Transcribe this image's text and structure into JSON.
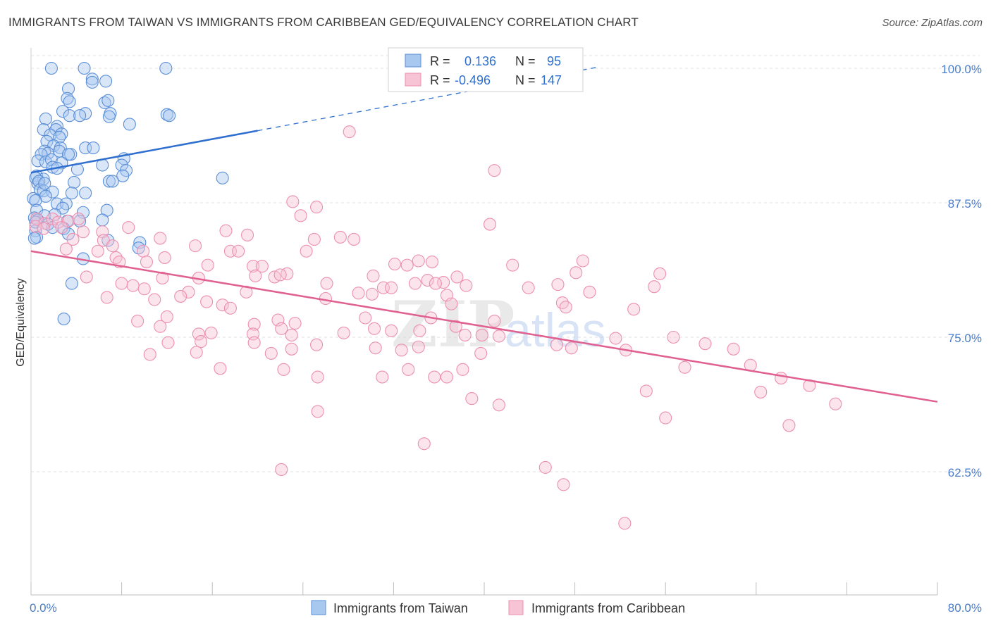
{
  "title": "IMMIGRANTS FROM TAIWAN VS IMMIGRANTS FROM CARIBBEAN GED/EQUIVALENCY CORRELATION CHART",
  "source": "Source: ZipAtlas.com",
  "watermark": "ZIPatlas",
  "colors": {
    "taiwan": "#5b8fd8",
    "taiwan_fill": "#a9c8ef",
    "taiwan_line": "#2f6fcf",
    "caribbean": "#ec8fb0",
    "caribbean_fill": "#f6c4d5",
    "caribbean_line": "#e0608f",
    "tick_text": "#4a7cc9",
    "grid": "#e2e2e2"
  },
  "legend": {
    "r_label": "R =",
    "n_label": "N =",
    "rows": [
      {
        "r": "0.136",
        "n": "95"
      },
      {
        "r": "-0.496",
        "n": "147"
      }
    ]
  },
  "chart_data": {
    "type": "scatter",
    "title": "IMMIGRANTS FROM TAIWAN VS IMMIGRANTS FROM CARIBBEAN GED/EQUIVALENCY CORRELATION CHART",
    "xlabel": "",
    "ylabel": "GED/Equivalency",
    "xlim": [
      0,
      80
    ],
    "ylim": [
      52,
      101
    ],
    "x_tick_labels": [
      "0.0%",
      "80.0%"
    ],
    "y_ticks": [
      62.5,
      75.0,
      87.5,
      100.0
    ],
    "y_tick_labels": [
      "62.5%",
      "75.0%",
      "87.5%",
      "100.0%"
    ],
    "grid": true,
    "legend_position": "bottom",
    "series": [
      {
        "name": "Immigrants from Taiwan",
        "trend": {
          "x": [
            0,
            20
          ],
          "y": [
            90.3,
            94.2
          ],
          "dashed_to": [
            50,
            100.1
          ]
        },
        "points": [
          [
            4.7,
            100
          ],
          [
            11.9,
            100
          ],
          [
            5.4,
            99
          ],
          [
            1.8,
            100
          ],
          [
            3.3,
            98.1
          ],
          [
            6.6,
            98.8
          ],
          [
            3.2,
            97.2
          ],
          [
            6.5,
            96.8
          ],
          [
            5.4,
            98.7
          ],
          [
            3.4,
            96.9
          ],
          [
            6.8,
            97
          ],
          [
            2.8,
            96
          ],
          [
            4.8,
            95.8
          ],
          [
            7,
            95.8
          ],
          [
            3.4,
            95.6
          ],
          [
            1.3,
            95.3
          ],
          [
            4.3,
            95.6
          ],
          [
            6.9,
            95.5
          ],
          [
            12,
            95.7
          ],
          [
            12.2,
            95.6
          ],
          [
            8.7,
            94.8
          ],
          [
            1.1,
            94.3
          ],
          [
            2.3,
            94.6
          ],
          [
            2.2,
            94.3
          ],
          [
            1.7,
            93.8
          ],
          [
            2.7,
            93.9
          ],
          [
            2.5,
            93.6
          ],
          [
            1.4,
            93.2
          ],
          [
            2,
            92.8
          ],
          [
            4.8,
            92.6
          ],
          [
            5.5,
            92.6
          ],
          [
            1.2,
            92.3
          ],
          [
            2.6,
            92.6
          ],
          [
            1.5,
            92.1
          ],
          [
            2.5,
            92.3
          ],
          [
            3.5,
            92
          ],
          [
            0.9,
            92
          ],
          [
            3.3,
            92
          ],
          [
            0.6,
            91.4
          ],
          [
            1.3,
            91.3
          ],
          [
            1.8,
            91.5
          ],
          [
            2.7,
            91.2
          ],
          [
            8.2,
            91.6
          ],
          [
            4.1,
            90.6
          ],
          [
            6.3,
            91
          ],
          [
            8,
            91
          ],
          [
            1.9,
            90.8
          ],
          [
            2.3,
            90.7
          ],
          [
            8.4,
            90.5
          ],
          [
            8.1,
            90
          ],
          [
            0.5,
            90
          ],
          [
            1.1,
            89.7
          ],
          [
            0.4,
            89.8
          ],
          [
            6.9,
            89.5
          ],
          [
            7.2,
            89.5
          ],
          [
            0.6,
            89.3
          ],
          [
            0.7,
            89.5
          ],
          [
            3.8,
            89.4
          ],
          [
            16.9,
            89.8
          ],
          [
            0.8,
            88.7
          ],
          [
            1.1,
            88.6
          ],
          [
            1.9,
            88.5
          ],
          [
            3.6,
            88.4
          ],
          [
            4.8,
            88.4
          ],
          [
            1.3,
            88.1
          ],
          [
            0.2,
            87.9
          ],
          [
            0.4,
            87.7
          ],
          [
            2.3,
            87.4
          ],
          [
            3.1,
            87.4
          ],
          [
            2.8,
            87
          ],
          [
            0.5,
            86.8
          ],
          [
            4.6,
            86.6
          ],
          [
            6.7,
            86.8
          ],
          [
            1.2,
            86.3
          ],
          [
            2.1,
            86.4
          ],
          [
            0.3,
            86.1
          ],
          [
            0.6,
            85.9
          ],
          [
            3.2,
            85.8
          ],
          [
            4.3,
            85.8
          ],
          [
            6.3,
            85.9
          ],
          [
            1.5,
            85.5
          ],
          [
            1.9,
            85.2
          ],
          [
            2.9,
            85.1
          ],
          [
            0.4,
            84.9
          ],
          [
            3.3,
            84.6
          ],
          [
            0.5,
            84.3
          ],
          [
            0.3,
            84.2
          ],
          [
            6.8,
            84
          ],
          [
            9.6,
            83.8
          ],
          [
            9.5,
            83.3
          ],
          [
            4.6,
            82.3
          ],
          [
            3.6,
            80
          ],
          [
            2.9,
            76.7
          ],
          [
            0.4,
            85.7
          ],
          [
            1.2,
            89.3
          ]
        ]
      },
      {
        "name": "Immigrants from Caribbean",
        "trend": {
          "x": [
            0,
            80
          ],
          "y": [
            83,
            69
          ]
        },
        "points": [
          [
            0.5,
            86
          ],
          [
            1.2,
            85.6
          ],
          [
            1.9,
            86
          ],
          [
            2.4,
            85.7
          ],
          [
            3.3,
            85.8
          ],
          [
            4.2,
            86
          ],
          [
            0.4,
            85.3
          ],
          [
            1.1,
            85.1
          ],
          [
            2.7,
            85.2
          ],
          [
            4.6,
            84.8
          ],
          [
            6.3,
            84.8
          ],
          [
            8.6,
            85.2
          ],
          [
            11.4,
            84.2
          ],
          [
            17.2,
            84.9
          ],
          [
            19.1,
            84.5
          ],
          [
            25,
            84.1
          ],
          [
            27.3,
            84.3
          ],
          [
            28.5,
            84.1
          ],
          [
            28.1,
            94.1
          ],
          [
            40.9,
            90.5
          ],
          [
            23.1,
            87.6
          ],
          [
            25.2,
            87.1
          ],
          [
            23.8,
            86.3
          ],
          [
            40.5,
            85.5
          ],
          [
            3.7,
            84.1
          ],
          [
            6.4,
            84
          ],
          [
            7.2,
            83.5
          ],
          [
            3.1,
            83.2
          ],
          [
            5.9,
            83
          ],
          [
            9.9,
            83
          ],
          [
            14.5,
            83.5
          ],
          [
            17.6,
            83
          ],
          [
            18.3,
            83
          ],
          [
            24.3,
            83
          ],
          [
            7.5,
            82.4
          ],
          [
            11.8,
            82.4
          ],
          [
            7.8,
            82
          ],
          [
            10.2,
            82
          ],
          [
            15.6,
            81.7
          ],
          [
            19.6,
            81.6
          ],
          [
            20.4,
            81.6
          ],
          [
            22.6,
            80.9
          ],
          [
            32.1,
            81.8
          ],
          [
            33.2,
            81.7
          ],
          [
            34.2,
            82.1
          ],
          [
            35.4,
            82
          ],
          [
            42.5,
            81.7
          ],
          [
            48.1,
            81
          ],
          [
            48.7,
            82.1
          ],
          [
            4.9,
            80.6
          ],
          [
            11.6,
            80.5
          ],
          [
            14.8,
            80.5
          ],
          [
            19.8,
            80.7
          ],
          [
            21.5,
            80.6
          ],
          [
            22,
            80.8
          ],
          [
            26.1,
            80
          ],
          [
            30.2,
            80.7
          ],
          [
            33.9,
            80
          ],
          [
            35,
            80.3
          ],
          [
            36.4,
            80.1
          ],
          [
            37.6,
            80.6
          ],
          [
            8,
            80
          ],
          [
            9,
            79.8
          ],
          [
            10,
            79.5
          ],
          [
            13.9,
            79.2
          ],
          [
            19,
            79.2
          ],
          [
            28.9,
            79.1
          ],
          [
            31.1,
            79.6
          ],
          [
            31.8,
            79.6
          ],
          [
            35.7,
            80
          ],
          [
            38.4,
            79.8
          ],
          [
            43.9,
            79.6
          ],
          [
            46.5,
            79.9
          ],
          [
            55,
            79.7
          ],
          [
            49.3,
            79.2
          ],
          [
            55.5,
            80.9
          ],
          [
            6.7,
            78.7
          ],
          [
            10.9,
            78.5
          ],
          [
            13.2,
            78.8
          ],
          [
            15.5,
            78.3
          ],
          [
            16.9,
            78
          ],
          [
            17.6,
            77.7
          ],
          [
            26,
            78.6
          ],
          [
            30.1,
            79
          ],
          [
            36.7,
            78.9
          ],
          [
            37.1,
            78.1
          ],
          [
            46.9,
            78.2
          ],
          [
            47.2,
            77.8
          ],
          [
            53.2,
            77.6
          ],
          [
            12,
            76.9
          ],
          [
            19.7,
            76.2
          ],
          [
            21.8,
            76.6
          ],
          [
            23.3,
            76.3
          ],
          [
            29.5,
            76.8
          ],
          [
            35.3,
            76.8
          ],
          [
            37.5,
            76
          ],
          [
            40.9,
            76.5
          ],
          [
            9.4,
            76.5
          ],
          [
            11.4,
            76
          ],
          [
            14.8,
            75.3
          ],
          [
            15.9,
            75.4
          ],
          [
            19.6,
            75.3
          ],
          [
            22.1,
            75.8
          ],
          [
            27.6,
            75.4
          ],
          [
            30.3,
            75.8
          ],
          [
            31.8,
            75.6
          ],
          [
            23,
            75.2
          ],
          [
            34.3,
            75.6
          ],
          [
            38.3,
            75.2
          ],
          [
            39.8,
            75.2
          ],
          [
            41.3,
            75.1
          ],
          [
            51.6,
            74.9
          ],
          [
            56.7,
            75
          ],
          [
            12.1,
            74.5
          ],
          [
            15,
            74.6
          ],
          [
            19.7,
            74.5
          ],
          [
            25.2,
            74.3
          ],
          [
            30.4,
            74
          ],
          [
            32.7,
            73.8
          ],
          [
            34.2,
            74.1
          ],
          [
            39.7,
            73.5
          ],
          [
            46.4,
            74.3
          ],
          [
            47.7,
            74
          ],
          [
            10.5,
            73.4
          ],
          [
            14.6,
            73.6
          ],
          [
            21.2,
            73.5
          ],
          [
            23,
            73.9
          ],
          [
            16.7,
            72.1
          ],
          [
            22.3,
            72
          ],
          [
            25.3,
            71.3
          ],
          [
            31,
            71.3
          ],
          [
            33.3,
            72
          ],
          [
            35.6,
            71.3
          ],
          [
            36.7,
            71.3
          ],
          [
            38.1,
            72
          ],
          [
            52.5,
            73.8
          ],
          [
            54.3,
            70
          ],
          [
            64.4,
            69.9
          ],
          [
            68.7,
            70.5
          ],
          [
            71,
            68.8
          ],
          [
            56,
            67.5
          ],
          [
            25.3,
            68.1
          ],
          [
            38.9,
            69.3
          ],
          [
            41.3,
            68.7
          ],
          [
            34.7,
            65.1
          ],
          [
            22.1,
            62.7
          ],
          [
            45.4,
            62.9
          ],
          [
            47,
            61.3
          ],
          [
            52.4,
            57.7
          ],
          [
            66.9,
            66.8
          ],
          [
            57.7,
            72.2
          ],
          [
            59.5,
            74.4
          ],
          [
            62,
            73.9
          ],
          [
            63.5,
            72.4
          ],
          [
            66.2,
            71.2
          ]
        ]
      }
    ]
  },
  "bottom_legend": [
    "Immigrants from Taiwan",
    "Immigrants from Caribbean"
  ]
}
